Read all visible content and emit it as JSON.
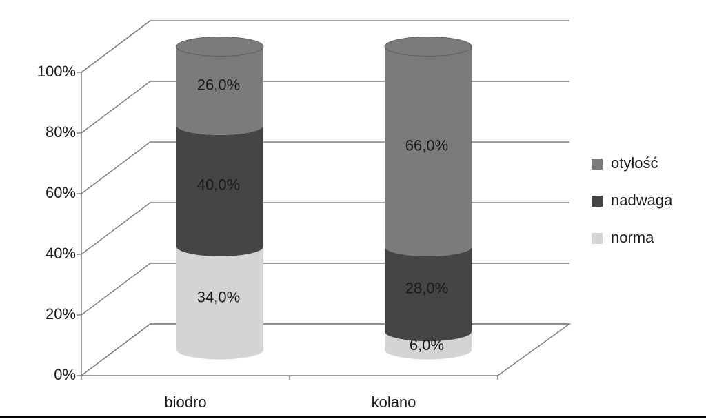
{
  "chart_data": {
    "type": "stacked-cylinder",
    "categories": [
      "biodro",
      "kolano"
    ],
    "series": [
      {
        "name": "norma",
        "color": "#d4d4d4",
        "values": [
          34,
          6
        ],
        "value_labels": [
          "34,0%",
          "6,0%"
        ]
      },
      {
        "name": "nadwaga",
        "color": "#454545",
        "values": [
          40,
          28
        ],
        "value_labels": [
          "40,0%",
          "28,0%"
        ]
      },
      {
        "name": "otyłość",
        "color": "#7b7b7b",
        "values": [
          26,
          66
        ],
        "value_labels": [
          "26,0%",
          "66,0%"
        ]
      }
    ],
    "ylim": [
      0,
      100
    ],
    "yticks": [
      {
        "value": 0,
        "label": "0%"
      },
      {
        "value": 20,
        "label": "20%"
      },
      {
        "value": 40,
        "label": "40%"
      },
      {
        "value": 60,
        "label": "60%"
      },
      {
        "value": 80,
        "label": "80%"
      },
      {
        "value": 100,
        "label": "100%"
      }
    ],
    "grid": true,
    "legend": "right"
  }
}
